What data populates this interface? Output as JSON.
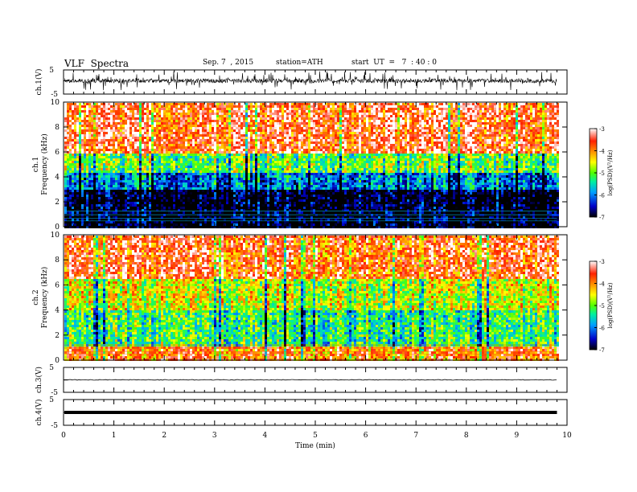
{
  "header": {
    "title": "VLF  Spectra",
    "date": "Sep. 7  , 2015",
    "station": "station=ATH",
    "start": "start  UT  =   7  : 40 : 0"
  },
  "chart_data": [
    {
      "type": "line",
      "ylabel": "ch.1(V)",
      "ylim": [
        -5,
        5
      ],
      "yticks": [
        "5",
        "-5"
      ],
      "description": "noisy waveform centered near 0 V, spikes up to about +/-4 V",
      "baseline": 0.5
    },
    {
      "type": "heatmap",
      "ylabel_top": "ch.1",
      "ylabel": "Frequency  (kHz)",
      "ylim": [
        0,
        10
      ],
      "yticks": [
        "0",
        "2",
        "4",
        "6",
        "8",
        "10"
      ],
      "colorbar": {
        "label": "log(PSD)(V²/Hz)",
        "ticks": [
          "-3",
          "-4",
          "-5",
          "-6",
          "-7"
        ],
        "range": [
          -7,
          -3
        ],
        "colors": [
          "#000000",
          "#0000c8",
          "#00a0ff",
          "#00f0a0",
          "#50ff00",
          "#ffff00",
          "#ff9000",
          "#ff2000",
          "#ffffff"
        ]
      },
      "bands": [
        {
          "from_khz": 0,
          "to_khz": 3,
          "level": -7
        },
        {
          "from_khz": 3,
          "to_khz": 4.5,
          "level": -6
        },
        {
          "from_khz": 4.5,
          "to_khz": 6,
          "level": -5
        },
        {
          "from_khz": 6,
          "to_khz": 10,
          "level": -3.5
        }
      ]
    },
    {
      "type": "heatmap",
      "ylabel_top": "ch.2",
      "ylabel": "Frequency  (kHz)",
      "ylim": [
        0,
        10
      ],
      "yticks": [
        "0",
        "2",
        "4",
        "6",
        "8",
        "10"
      ],
      "colorbar": {
        "label": "log(PSD)(V²/Hz)",
        "ticks": [
          "-3",
          "-4",
          "-5",
          "-6",
          "-7"
        ],
        "range": [
          -7,
          -3
        ]
      },
      "bands": [
        {
          "from_khz": 0,
          "to_khz": 1.2,
          "level": -3.8
        },
        {
          "from_khz": 1.2,
          "to_khz": 4,
          "level": -5.2
        },
        {
          "from_khz": 4,
          "to_khz": 6.5,
          "level": -4.6
        },
        {
          "from_khz": 6.5,
          "to_khz": 10,
          "level": -3.6
        }
      ]
    },
    {
      "type": "line",
      "ylabel": "ch.3(V)",
      "ylim": [
        -5,
        5
      ],
      "yticks": [
        "5",
        "-5"
      ],
      "description": "flat line near 0 V",
      "baseline": 0
    },
    {
      "type": "line",
      "ylabel": "ch.4(V)",
      "ylim": [
        -5,
        5
      ],
      "yticks": [
        "5",
        "-5"
      ],
      "description": "thick flat line near 0 V",
      "baseline": 0
    }
  ],
  "x_axis": {
    "label": "Time  (min)",
    "xlim": [
      0,
      10
    ],
    "data_end": 9.8,
    "ticks": [
      "0",
      "1",
      "2",
      "3",
      "4",
      "5",
      "6",
      "7",
      "8",
      "9",
      "10"
    ]
  }
}
